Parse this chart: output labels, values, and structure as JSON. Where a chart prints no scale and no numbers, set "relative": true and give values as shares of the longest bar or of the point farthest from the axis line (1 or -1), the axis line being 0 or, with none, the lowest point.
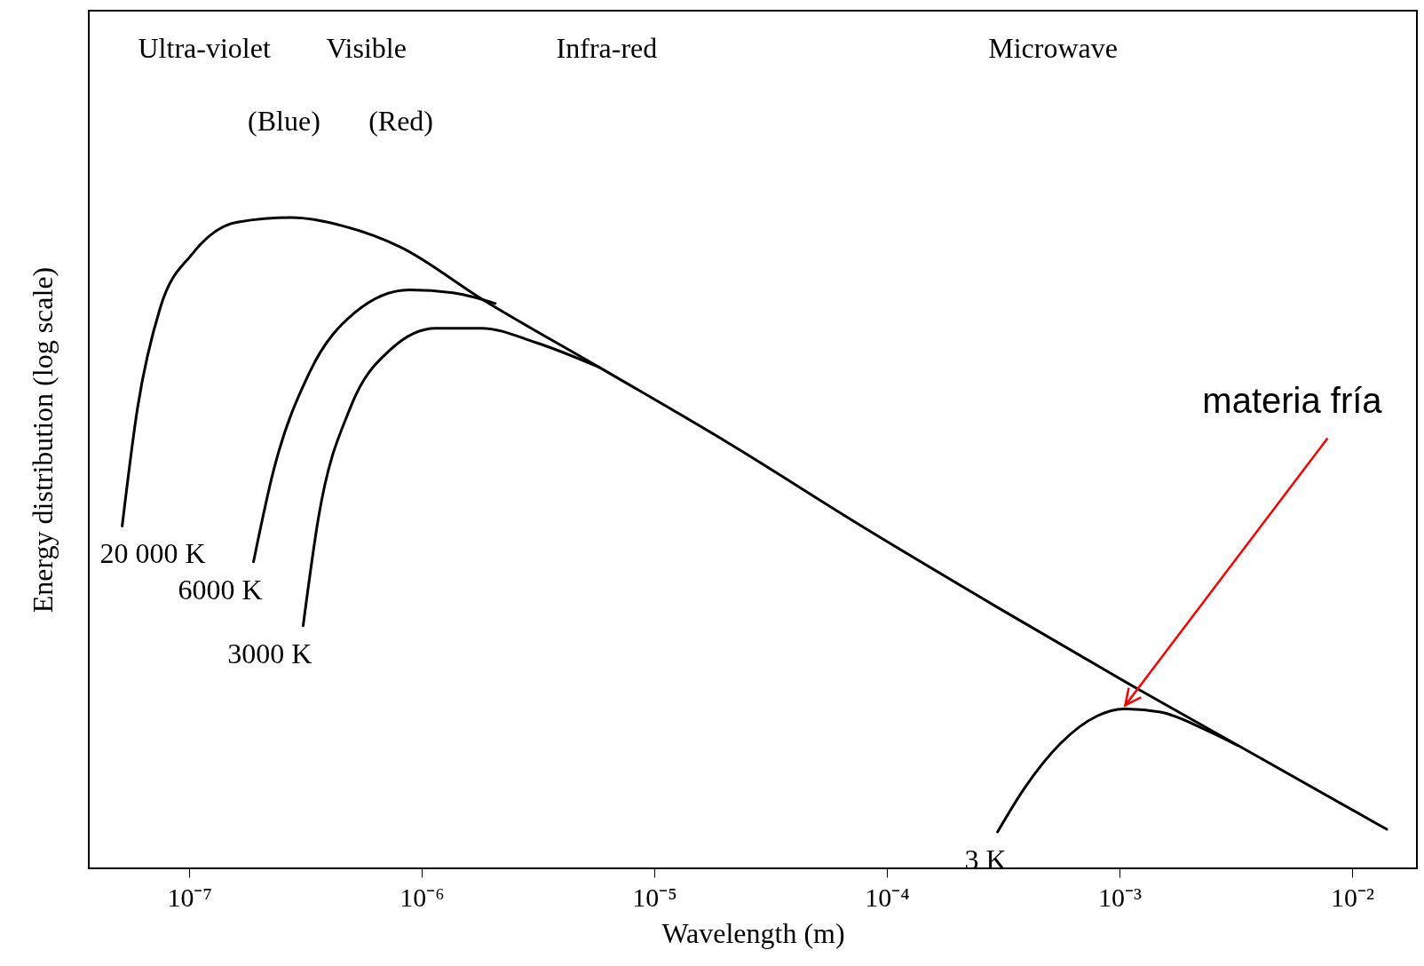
{
  "chart_data": {
    "type": "line",
    "relative": true,
    "log": "x",
    "xlabel": "Wavelength (m)",
    "ylabel": "Energy distribution (log scale)",
    "xlim": [
      3.7e-08,
      0.019
    ],
    "xticks": [
      {
        "value": 1e-07,
        "label": "10⁻⁷"
      },
      {
        "value": 1e-06,
        "label": "10⁻⁶"
      },
      {
        "value": 1e-05,
        "label": "10⁻⁵"
      },
      {
        "value": 0.0001,
        "label": "10⁻⁴"
      },
      {
        "value": 0.001,
        "label": "10⁻³"
      },
      {
        "value": 0.01,
        "label": "10⁻²"
      }
    ],
    "series": [
      {
        "name": "20 000 K",
        "color": "#000000",
        "x": [
          5.15e-08,
          6e-08,
          7.5e-08,
          1.03e-07,
          1.61e-07,
          2.75e-07,
          4.71e-07,
          8.07e-07,
          1.81e-06,
          5.79e-06,
          2.03e-05,
          7.78e-05,
          0.000299,
          0.00114,
          0.00366,
          0.0141
        ],
        "values": [
          0.526,
          0.708,
          0.861,
          0.944,
          0.993,
          1.0,
          0.986,
          0.955,
          0.875,
          0.77,
          0.656,
          0.526,
          0.401,
          0.28,
          0.178,
          0.06
        ]
      },
      {
        "name": "6000 K",
        "color": "#000000",
        "x": [
          1.89e-07,
          2.3e-07,
          3.3e-07,
          5.15e-07,
          8.83e-07,
          1.38e-06,
          2.07e-06
        ],
        "values": [
          0.471,
          0.61,
          0.763,
          0.854,
          0.889,
          0.884,
          0.868
        ]
      },
      {
        "name": "3000 K",
        "color": "#000000",
        "x": [
          3.09e-07,
          3.6e-07,
          4.93e-07,
          7.38e-07,
          1.15e-06,
          1.81e-06,
          3.09e-06,
          5.79e-06
        ],
        "values": [
          0.373,
          0.54,
          0.708,
          0.798,
          0.83,
          0.83,
          0.808,
          0.77
        ]
      },
      {
        "name": "3 K",
        "color": "#000000",
        "x": [
          0.000299,
          0.00039,
          0.000558,
          0.0008,
          0.00104,
          0.0015,
          0.00234,
          0.00321
        ],
        "values": [
          0.056,
          0.123,
          0.192,
          0.234,
          0.245,
          0.24,
          0.213,
          0.189
        ]
      }
    ],
    "annotations": [
      "Ultra-violet",
      "Visible",
      "Infra-red",
      "Microwave",
      "(Blue)",
      "(Red)",
      "materia fría"
    ]
  }
}
